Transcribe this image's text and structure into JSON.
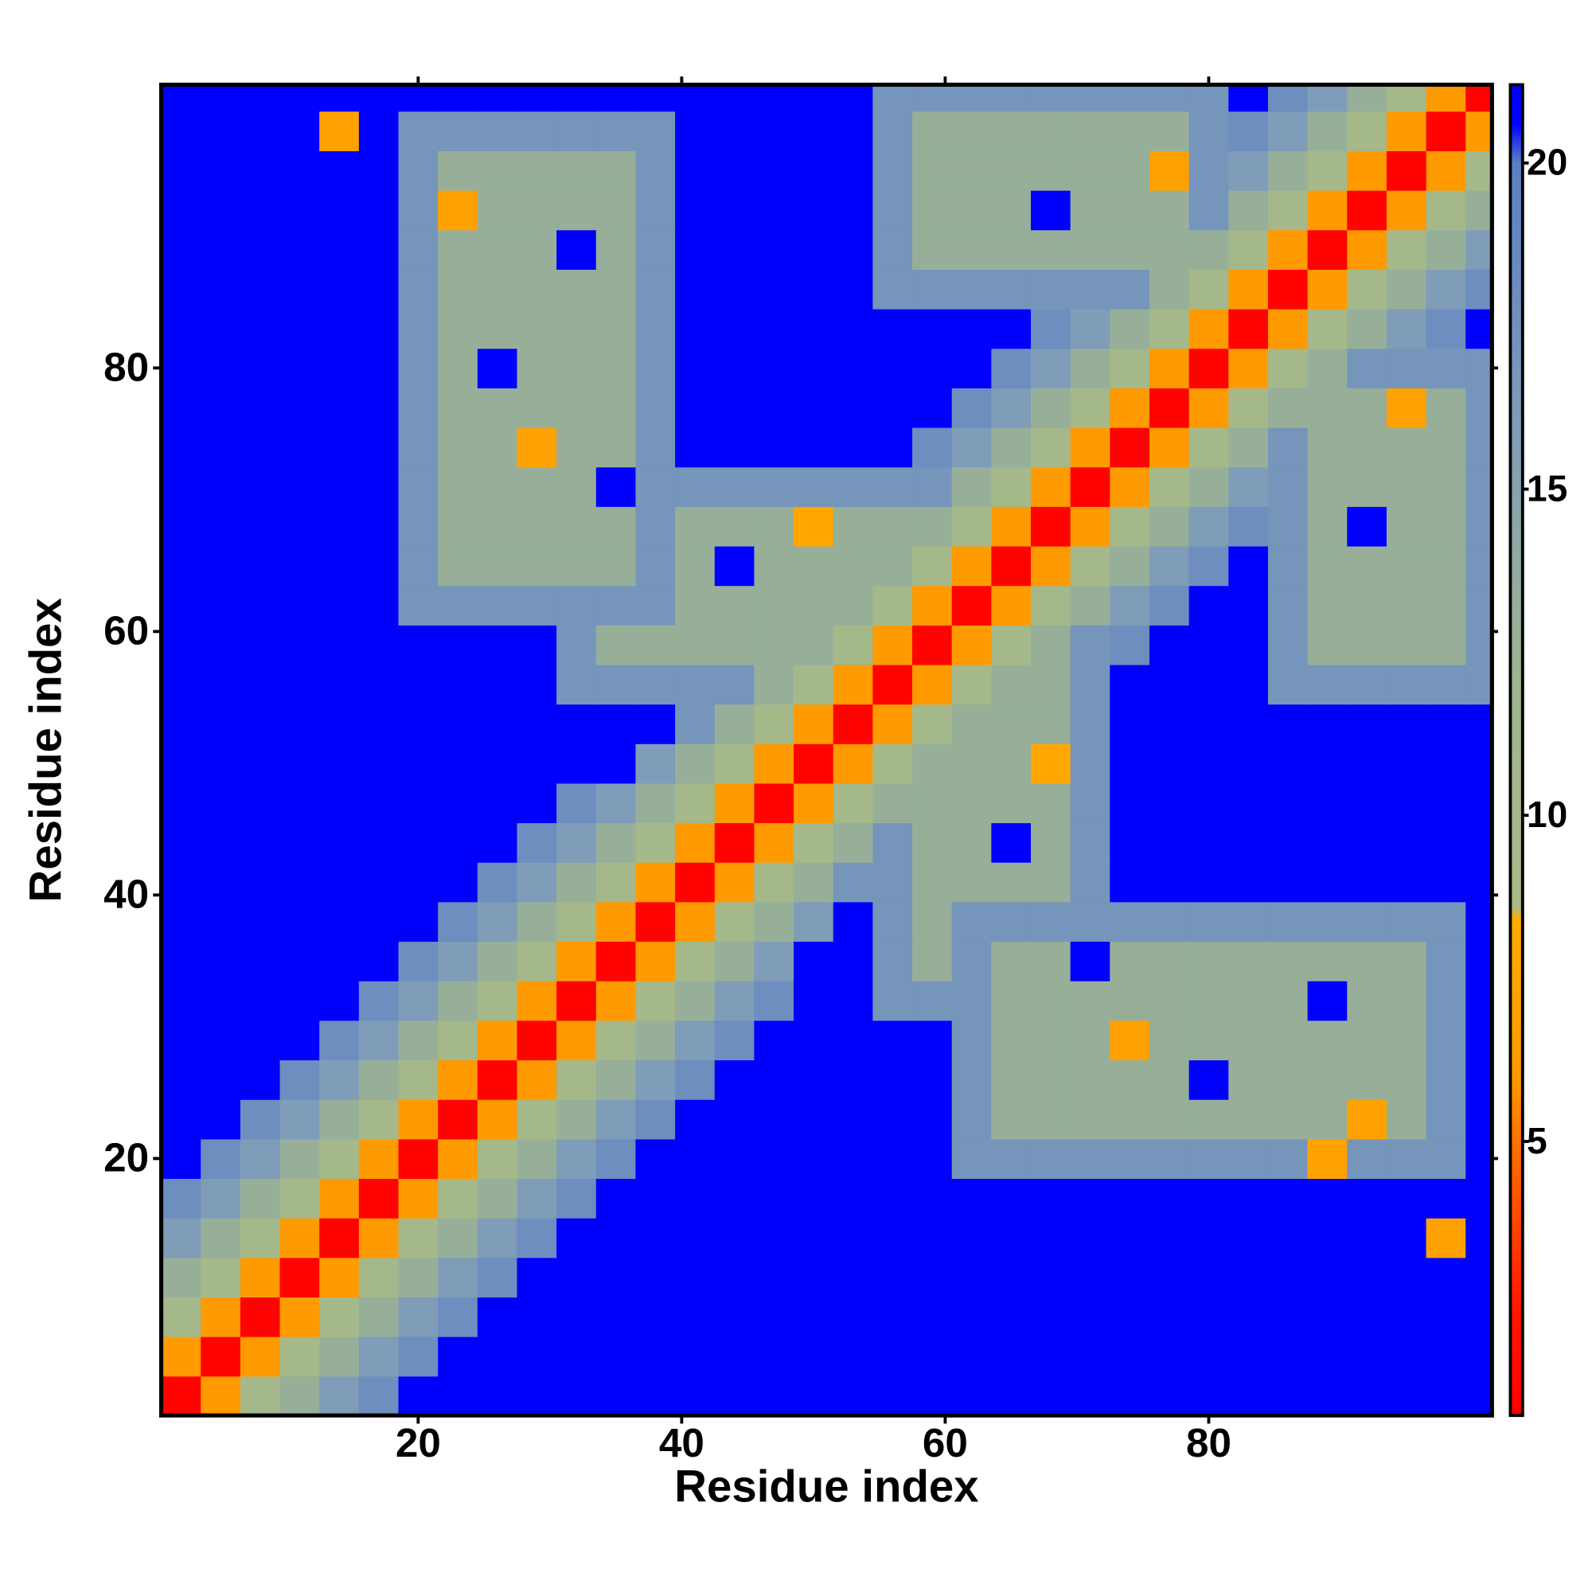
{
  "chart_data": {
    "type": "heatmap",
    "x_label": "Residue index",
    "y_label": "Residue index",
    "xlim": [
      0.5,
      101.5
    ],
    "ylim": [
      0.5,
      101.5
    ],
    "xticks": [
      20,
      40,
      60,
      80
    ],
    "yticks": [
      20,
      40,
      60,
      80
    ],
    "clim": [
      0.8,
      21.2
    ],
    "cticks": [
      5,
      10,
      15,
      20
    ],
    "colorscale": [
      [
        0.8,
        "#ff0000"
      ],
      [
        2.5,
        "#ff1a00"
      ],
      [
        4.8,
        "#ff6a00"
      ],
      [
        6,
        "#ff9a00"
      ],
      [
        8.4,
        "#ffaa00"
      ],
      [
        8.6,
        "#a9ba88"
      ],
      [
        12,
        "#9fb58e"
      ],
      [
        16,
        "#7f9cb8"
      ],
      [
        20,
        "#5b80c4"
      ],
      [
        20.6,
        "#0000ff"
      ],
      [
        21.2,
        "#0000ff"
      ]
    ],
    "xbins": [
      0.5,
      3.5,
      6.5,
      9.5,
      12.5,
      15.5,
      18.5,
      21.5,
      24.5,
      27.5,
      30.5,
      33.5,
      36.5,
      39.5,
      42.5,
      45.5,
      48.5,
      51.5,
      54.5,
      57.5,
      60.5,
      63.5,
      66.5,
      69.5,
      72.5,
      75.5,
      78.5,
      81.5,
      84.5,
      87.5,
      90.5,
      93.5,
      96.5,
      99.5,
      101.5
    ],
    "ybins": [
      0.5,
      3.5,
      6.5,
      9.5,
      12.5,
      15.5,
      18.5,
      21.5,
      24.5,
      27.5,
      30.5,
      33.5,
      36.5,
      39.5,
      42.5,
      45.5,
      48.5,
      51.5,
      54.5,
      57.5,
      60.5,
      63.5,
      66.5,
      69.5,
      72.5,
      75.5,
      78.5,
      81.5,
      84.5,
      87.5,
      90.5,
      93.5,
      96.5,
      99.5,
      101.5
    ],
    "z": [
      [
        1,
        6,
        10,
        13,
        16,
        18,
        21,
        21,
        21,
        21,
        21,
        21,
        21,
        21,
        21,
        21,
        21,
        21,
        21,
        21,
        21,
        21,
        21,
        21,
        21,
        21,
        21,
        21,
        21,
        21,
        21,
        21,
        21,
        21
      ],
      [
        6,
        1,
        6,
        10,
        13,
        16,
        18,
        21,
        21,
        21,
        21,
        21,
        21,
        21,
        21,
        21,
        21,
        21,
        21,
        21,
        21,
        21,
        21,
        21,
        21,
        21,
        21,
        21,
        21,
        21,
        21,
        21,
        21,
        21
      ],
      [
        10,
        6,
        1,
        6,
        10,
        13,
        16,
        18,
        21,
        21,
        21,
        21,
        21,
        21,
        21,
        21,
        21,
        21,
        21,
        21,
        21,
        21,
        21,
        21,
        21,
        21,
        21,
        21,
        21,
        21,
        21,
        21,
        21,
        21
      ],
      [
        13,
        10,
        6,
        1,
        6,
        10,
        13,
        16,
        18,
        21,
        21,
        21,
        21,
        21,
        21,
        21,
        21,
        21,
        21,
        21,
        21,
        21,
        21,
        21,
        21,
        21,
        21,
        21,
        21,
        21,
        21,
        21,
        21,
        21
      ],
      [
        16,
        13,
        10,
        6,
        1,
        6,
        10,
        13,
        16,
        18,
        21,
        21,
        21,
        21,
        21,
        21,
        21,
        21,
        21,
        21,
        21,
        21,
        21,
        21,
        21,
        21,
        21,
        21,
        21,
        21,
        21,
        21,
        7,
        21
      ],
      [
        18,
        16,
        13,
        10,
        6,
        1,
        6,
        10,
        13,
        16,
        18,
        21,
        21,
        21,
        21,
        21,
        21,
        21,
        21,
        21,
        21,
        21,
        21,
        21,
        21,
        21,
        21,
        21,
        21,
        21,
        21,
        21,
        21,
        21
      ],
      [
        21,
        18,
        16,
        13,
        10,
        6,
        1,
        6,
        10,
        13,
        16,
        18,
        21,
        21,
        21,
        21,
        21,
        21,
        21,
        21,
        17,
        17,
        17,
        17,
        17,
        17,
        17,
        17,
        17,
        7,
        17,
        17,
        17,
        21
      ],
      [
        21,
        21,
        18,
        16,
        13,
        10,
        6,
        1,
        6,
        10,
        13,
        16,
        18,
        21,
        21,
        21,
        21,
        21,
        21,
        21,
        17,
        13,
        13,
        13,
        13,
        13,
        13,
        13,
        13,
        13,
        7,
        13,
        17,
        21
      ],
      [
        21,
        21,
        21,
        18,
        16,
        13,
        10,
        6,
        1,
        6,
        10,
        13,
        16,
        18,
        21,
        21,
        21,
        21,
        21,
        21,
        17,
        13,
        13,
        13,
        13,
        13,
        21,
        13,
        13,
        13,
        13,
        13,
        17,
        21
      ],
      [
        21,
        21,
        21,
        21,
        18,
        16,
        13,
        10,
        6,
        1,
        6,
        10,
        13,
        16,
        18,
        21,
        21,
        21,
        21,
        21,
        17,
        13,
        13,
        13,
        7,
        13,
        13,
        13,
        13,
        13,
        13,
        13,
        17,
        21
      ],
      [
        21,
        21,
        21,
        21,
        21,
        18,
        16,
        13,
        10,
        6,
        1,
        6,
        10,
        13,
        16,
        18,
        21,
        21,
        17,
        17,
        17,
        13,
        13,
        13,
        13,
        13,
        13,
        13,
        13,
        21,
        13,
        13,
        17,
        21
      ],
      [
        21,
        21,
        21,
        21,
        21,
        21,
        18,
        16,
        13,
        10,
        6,
        1,
        6,
        10,
        13,
        16,
        21,
        21,
        17,
        13,
        17,
        13,
        13,
        21,
        13,
        13,
        13,
        13,
        13,
        13,
        13,
        13,
        17,
        21
      ],
      [
        21,
        21,
        21,
        21,
        21,
        21,
        21,
        18,
        16,
        13,
        10,
        6,
        1,
        6,
        10,
        13,
        16,
        21,
        17,
        13,
        17,
        17,
        17,
        17,
        17,
        17,
        17,
        17,
        17,
        17,
        17,
        17,
        17,
        21
      ],
      [
        21,
        21,
        21,
        21,
        21,
        21,
        21,
        21,
        18,
        16,
        13,
        10,
        6,
        1,
        6,
        10,
        13,
        17,
        17,
        13,
        13,
        13,
        13,
        17,
        21,
        21,
        21,
        21,
        21,
        21,
        21,
        21,
        21,
        21
      ],
      [
        21,
        21,
        21,
        21,
        21,
        21,
        21,
        21,
        21,
        18,
        16,
        13,
        10,
        6,
        1,
        6,
        10,
        13,
        17,
        13,
        13,
        21,
        13,
        17,
        21,
        21,
        21,
        21,
        21,
        21,
        21,
        21,
        21,
        21
      ],
      [
        21,
        21,
        21,
        21,
        21,
        21,
        21,
        21,
        21,
        21,
        18,
        16,
        13,
        10,
        6,
        1,
        6,
        10,
        13,
        13,
        13,
        13,
        13,
        17,
        21,
        21,
        21,
        21,
        21,
        21,
        21,
        21,
        21,
        21
      ],
      [
        21,
        21,
        21,
        21,
        21,
        21,
        21,
        21,
        21,
        21,
        21,
        21,
        16,
        13,
        10,
        6,
        1,
        6,
        10,
        13,
        13,
        13,
        8,
        17,
        21,
        21,
        21,
        21,
        21,
        21,
        21,
        21,
        21,
        21
      ],
      [
        21,
        21,
        21,
        21,
        21,
        21,
        21,
        21,
        21,
        21,
        21,
        21,
        21,
        17,
        13,
        10,
        6,
        1,
        6,
        10,
        13,
        13,
        13,
        17,
        21,
        21,
        21,
        21,
        21,
        21,
        21,
        21,
        21,
        21
      ],
      [
        21,
        21,
        21,
        21,
        21,
        21,
        21,
        21,
        21,
        21,
        17,
        17,
        17,
        17,
        17,
        13,
        10,
        6,
        1,
        6,
        10,
        13,
        13,
        17,
        21,
        21,
        21,
        21,
        17,
        17,
        17,
        17,
        17,
        17
      ],
      [
        21,
        21,
        21,
        21,
        21,
        21,
        21,
        21,
        21,
        21,
        17,
        13,
        13,
        13,
        13,
        13,
        13,
        10,
        6,
        1,
        6,
        10,
        13,
        17,
        18,
        21,
        21,
        21,
        17,
        13,
        13,
        13,
        13,
        17
      ],
      [
        21,
        21,
        21,
        21,
        21,
        21,
        17,
        17,
        17,
        17,
        17,
        17,
        17,
        13,
        13,
        13,
        13,
        13,
        10,
        6,
        1,
        6,
        10,
        13,
        16,
        18,
        21,
        21,
        17,
        13,
        13,
        13,
        13,
        17
      ],
      [
        21,
        21,
        21,
        21,
        21,
        21,
        17,
        13,
        13,
        13,
        13,
        13,
        17,
        13,
        21,
        13,
        13,
        13,
        13,
        10,
        6,
        1,
        6,
        10,
        13,
        16,
        18,
        21,
        17,
        13,
        13,
        13,
        13,
        17
      ],
      [
        21,
        21,
        21,
        21,
        21,
        21,
        17,
        13,
        13,
        13,
        13,
        13,
        17,
        13,
        13,
        13,
        8,
        13,
        13,
        13,
        10,
        6,
        1,
        6,
        10,
        13,
        16,
        18,
        17,
        13,
        21,
        13,
        13,
        17
      ],
      [
        21,
        21,
        21,
        21,
        21,
        21,
        17,
        13,
        13,
        13,
        13,
        21,
        17,
        17,
        17,
        17,
        17,
        17,
        17,
        17,
        13,
        10,
        6,
        1,
        6,
        10,
        13,
        16,
        17,
        13,
        13,
        13,
        13,
        17
      ],
      [
        21,
        21,
        21,
        21,
        21,
        21,
        17,
        13,
        13,
        7,
        13,
        13,
        17,
        21,
        21,
        21,
        21,
        21,
        21,
        18,
        16,
        13,
        10,
        6,
        1,
        6,
        10,
        13,
        17,
        13,
        13,
        13,
        13,
        17
      ],
      [
        21,
        21,
        21,
        21,
        21,
        21,
        17,
        13,
        13,
        13,
        13,
        13,
        17,
        21,
        21,
        21,
        21,
        21,
        21,
        21,
        18,
        16,
        13,
        10,
        6,
        1,
        6,
        10,
        13,
        13,
        13,
        7,
        13,
        17
      ],
      [
        21,
        21,
        21,
        21,
        21,
        21,
        17,
        13,
        21,
        13,
        13,
        13,
        17,
        21,
        21,
        21,
        21,
        21,
        21,
        21,
        21,
        18,
        16,
        13,
        10,
        6,
        1,
        6,
        10,
        13,
        17,
        17,
        17,
        17
      ],
      [
        21,
        21,
        21,
        21,
        21,
        21,
        17,
        13,
        13,
        13,
        13,
        13,
        17,
        21,
        21,
        21,
        21,
        21,
        21,
        21,
        21,
        21,
        18,
        16,
        13,
        10,
        6,
        1,
        6,
        10,
        13,
        16,
        18,
        21
      ],
      [
        21,
        21,
        21,
        21,
        21,
        21,
        17,
        13,
        13,
        13,
        13,
        13,
        17,
        21,
        21,
        21,
        21,
        21,
        17,
        17,
        17,
        17,
        17,
        17,
        17,
        13,
        10,
        6,
        1,
        6,
        10,
        13,
        16,
        18
      ],
      [
        21,
        21,
        21,
        21,
        21,
        21,
        17,
        13,
        13,
        13,
        21,
        13,
        17,
        21,
        21,
        21,
        21,
        21,
        17,
        13,
        13,
        13,
        13,
        13,
        13,
        13,
        13,
        10,
        6,
        1,
        6,
        10,
        13,
        16
      ],
      [
        21,
        21,
        21,
        21,
        21,
        21,
        17,
        7,
        13,
        13,
        13,
        13,
        17,
        21,
        21,
        21,
        21,
        21,
        17,
        13,
        13,
        13,
        21,
        13,
        13,
        13,
        17,
        13,
        10,
        6,
        1,
        6,
        10,
        13
      ],
      [
        21,
        21,
        21,
        21,
        21,
        21,
        17,
        13,
        13,
        13,
        13,
        13,
        17,
        21,
        21,
        21,
        21,
        21,
        17,
        13,
        13,
        13,
        13,
        13,
        13,
        7,
        17,
        16,
        13,
        10,
        6,
        1,
        6,
        10
      ],
      [
        21,
        21,
        21,
        21,
        7,
        21,
        17,
        17,
        17,
        17,
        17,
        17,
        17,
        21,
        21,
        21,
        21,
        21,
        17,
        13,
        13,
        13,
        13,
        13,
        13,
        13,
        17,
        18,
        16,
        13,
        10,
        6,
        1,
        6
      ],
      [
        21,
        21,
        21,
        21,
        21,
        21,
        21,
        21,
        21,
        21,
        21,
        21,
        21,
        21,
        21,
        21,
        21,
        21,
        17,
        17,
        17,
        17,
        17,
        17,
        17,
        17,
        17,
        21,
        18,
        16,
        13,
        10,
        6,
        1
      ]
    ]
  }
}
